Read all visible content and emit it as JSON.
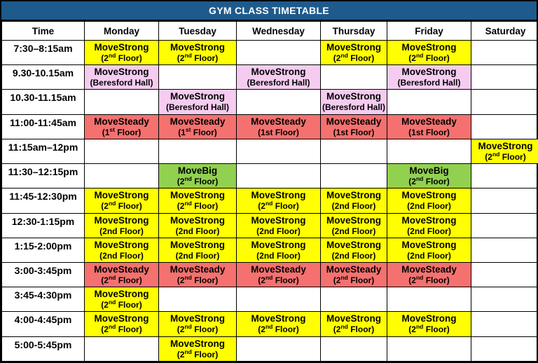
{
  "title": "GYM CLASS TIMETABLE",
  "columns": [
    "Time",
    "Monday",
    "Tuesday",
    "Wednesday",
    "Thursday",
    "Friday",
    "Saturday"
  ],
  "colors": {
    "header_bg": "#1f5a8c",
    "header_text": "#ffffff",
    "yellow": "#ffff00",
    "pink": "#f5ccf0",
    "red": "#f4716f",
    "green": "#92d050",
    "border": "#000000",
    "text": "#000000"
  },
  "rows": [
    {
      "time": "7:30–8:15am",
      "cells": [
        {
          "name": "MoveStrong",
          "loc_pre": "(2",
          "loc_sup": "nd",
          "loc_post": " Floor)",
          "bg": "yellow"
        },
        {
          "name": "MoveStrong",
          "loc_pre": "(2",
          "loc_sup": "nd",
          "loc_post": " Floor)",
          "bg": "yellow"
        },
        null,
        {
          "name": "MoveStrong",
          "loc_pre": "(2",
          "loc_sup": "nd",
          "loc_post": " Floor)",
          "bg": "yellow"
        },
        {
          "name": "MoveStrong",
          "loc_pre": "(2",
          "loc_sup": "nd",
          "loc_post": " Floor)",
          "bg": "yellow"
        },
        null
      ]
    },
    {
      "time": "9.30-10.15am",
      "cells": [
        {
          "name": "MoveStrong",
          "loc_pre": "(Beresford Hall)",
          "loc_sup": "",
          "loc_post": "",
          "bg": "pink"
        },
        null,
        {
          "name": "MoveStrong",
          "loc_pre": "(Beresford Hall)",
          "loc_sup": "",
          "loc_post": "",
          "bg": "pink"
        },
        null,
        {
          "name": "MoveStrong",
          "loc_pre": "(Beresford Hall)",
          "loc_sup": "",
          "loc_post": "",
          "bg": "pink"
        },
        null
      ]
    },
    {
      "time": "10.30-11.15am",
      "cells": [
        null,
        {
          "name": "MoveStrong",
          "loc_pre": "(Beresford Hall)",
          "loc_sup": "",
          "loc_post": "",
          "bg": "pink"
        },
        null,
        {
          "name": "MoveStrong",
          "loc_pre": "(Beresford Hall)",
          "loc_sup": "",
          "loc_post": "",
          "bg": "pink"
        },
        null,
        null
      ]
    },
    {
      "time": "11:00-11:45am",
      "cells": [
        {
          "name": "MoveSteady",
          "loc_pre": "(1",
          "loc_sup": "st",
          "loc_post": " Floor)",
          "bg": "red"
        },
        {
          "name": "MoveSteady",
          "loc_pre": "(1",
          "loc_sup": "st",
          "loc_post": " Floor)",
          "bg": "red"
        },
        {
          "name": "MoveSteady",
          "loc_pre": "(1st Floor)",
          "loc_sup": "",
          "loc_post": "",
          "bg": "red"
        },
        {
          "name": "MoveSteady",
          "loc_pre": "(1st Floor)",
          "loc_sup": "",
          "loc_post": "",
          "bg": "red"
        },
        {
          "name": "MoveSteady",
          "loc_pre": "(1st Floor)",
          "loc_sup": "",
          "loc_post": "",
          "bg": "red"
        },
        null
      ]
    },
    {
      "time": "11:15am–12pm",
      "cells": [
        null,
        null,
        null,
        null,
        null,
        {
          "name": "MoveStrong",
          "loc_pre": "(2",
          "loc_sup": "nd",
          "loc_post": " Floor)",
          "bg": "yellow"
        }
      ]
    },
    {
      "time": "11:30–12:15pm",
      "cells": [
        null,
        {
          "name": "MoveBig",
          "loc_pre": "(2",
          "loc_sup": "nd",
          "loc_post": " Floor)",
          "bg": "green"
        },
        null,
        null,
        {
          "name": "MoveBig",
          "loc_pre": "(2",
          "loc_sup": "nd",
          "loc_post": " Floor)",
          "bg": "green"
        },
        null
      ]
    },
    {
      "time": "11:45-12:30pm",
      "cells": [
        {
          "name": "MoveStrong",
          "loc_pre": "(2",
          "loc_sup": "nd",
          "loc_post": " Floor)",
          "bg": "yellow"
        },
        {
          "name": "MoveStrong",
          "loc_pre": "(2",
          "loc_sup": "nd",
          "loc_post": " Floor)",
          "bg": "yellow"
        },
        {
          "name": "MoveStrong",
          "loc_pre": "(2",
          "loc_sup": "nd",
          "loc_post": " Floor)",
          "bg": "yellow"
        },
        {
          "name": "MoveStrong",
          "loc_pre": "(2nd Floor)",
          "loc_sup": "",
          "loc_post": "",
          "bg": "yellow"
        },
        {
          "name": "MoveStrong",
          "loc_pre": "(2nd Floor)",
          "loc_sup": "",
          "loc_post": "",
          "bg": "yellow"
        },
        null
      ]
    },
    {
      "time": "12:30-1:15pm",
      "cells": [
        {
          "name": "MoveStrong",
          "loc_pre": "(2nd Floor)",
          "loc_sup": "",
          "loc_post": "",
          "bg": "yellow"
        },
        {
          "name": "MoveStrong",
          "loc_pre": "(2nd Floor)",
          "loc_sup": "",
          "loc_post": "",
          "bg": "yellow"
        },
        {
          "name": "MoveStrong",
          "loc_pre": "(2nd Floor)",
          "loc_sup": "",
          "loc_post": "",
          "bg": "yellow"
        },
        {
          "name": "MoveStrong",
          "loc_pre": "(2nd Floor)",
          "loc_sup": "",
          "loc_post": "",
          "bg": "yellow"
        },
        {
          "name": "MoveStrong",
          "loc_pre": "(2nd Floor)",
          "loc_sup": "",
          "loc_post": "",
          "bg": "yellow"
        },
        null
      ]
    },
    {
      "time": "1:15-2:00pm",
      "cells": [
        {
          "name": "MoveStrong",
          "loc_pre": "(2nd Floor)",
          "loc_sup": "",
          "loc_post": "",
          "bg": "yellow"
        },
        {
          "name": "MoveStrong",
          "loc_pre": "(2nd Floor)",
          "loc_sup": "",
          "loc_post": "",
          "bg": "yellow"
        },
        {
          "name": "MoveStrong",
          "loc_pre": "(2nd Floor)",
          "loc_sup": "",
          "loc_post": "",
          "bg": "yellow"
        },
        {
          "name": "MoveStrong",
          "loc_pre": "(2nd Floor)",
          "loc_sup": "",
          "loc_post": "",
          "bg": "yellow"
        },
        {
          "name": "MoveStrong",
          "loc_pre": "(2nd Floor)",
          "loc_sup": "",
          "loc_post": "",
          "bg": "yellow"
        },
        null
      ]
    },
    {
      "time": "3:00-3:45pm",
      "cells": [
        {
          "name": "MoveSteady",
          "loc_pre": "(2",
          "loc_sup": "nd",
          "loc_post": " Floor)",
          "bg": "red"
        },
        {
          "name": "MoveSteady",
          "loc_pre": "(2",
          "loc_sup": "nd",
          "loc_post": " Floor)",
          "bg": "red"
        },
        {
          "name": "MoveSteady",
          "loc_pre": "(2",
          "loc_sup": "nd",
          "loc_post": " Floor)",
          "bg": "red"
        },
        {
          "name": "MoveSteady",
          "loc_pre": "(2",
          "loc_sup": "nd",
          "loc_post": " Floor)",
          "bg": "red"
        },
        {
          "name": "MoveSteady",
          "loc_pre": "(2",
          "loc_sup": "nd",
          "loc_post": " Floor)",
          "bg": "red"
        },
        null
      ]
    },
    {
      "time": "3:45-4:30pm",
      "cells": [
        {
          "name": "MoveStrong",
          "loc_pre": "(2",
          "loc_sup": "nd",
          "loc_post": " Floor)",
          "bg": "yellow"
        },
        null,
        null,
        null,
        null,
        null
      ]
    },
    {
      "time": "4:00-4:45pm",
      "cells": [
        {
          "name": "MoveStrong",
          "loc_pre": "(2",
          "loc_sup": "nd",
          "loc_post": " Floor)",
          "bg": "yellow"
        },
        {
          "name": "MoveStrong",
          "loc_pre": "(2",
          "loc_sup": "nd",
          "loc_post": " Floor)",
          "bg": "yellow"
        },
        {
          "name": "MoveStrong",
          "loc_pre": "(2",
          "loc_sup": "nd",
          "loc_post": " Floor)",
          "bg": "yellow"
        },
        {
          "name": "MoveStrong",
          "loc_pre": "(2",
          "loc_sup": "nd",
          "loc_post": " Floor)",
          "bg": "yellow"
        },
        {
          "name": "MoveStrong",
          "loc_pre": "(2",
          "loc_sup": "nd",
          "loc_post": " Floor)",
          "bg": "yellow"
        },
        null
      ]
    },
    {
      "time": "5:00-5:45pm",
      "cells": [
        null,
        {
          "name": "MoveStrong",
          "loc_pre": "(2",
          "loc_sup": "nd",
          "loc_post": " Floor)",
          "bg": "yellow"
        },
        null,
        null,
        null,
        null
      ]
    }
  ]
}
